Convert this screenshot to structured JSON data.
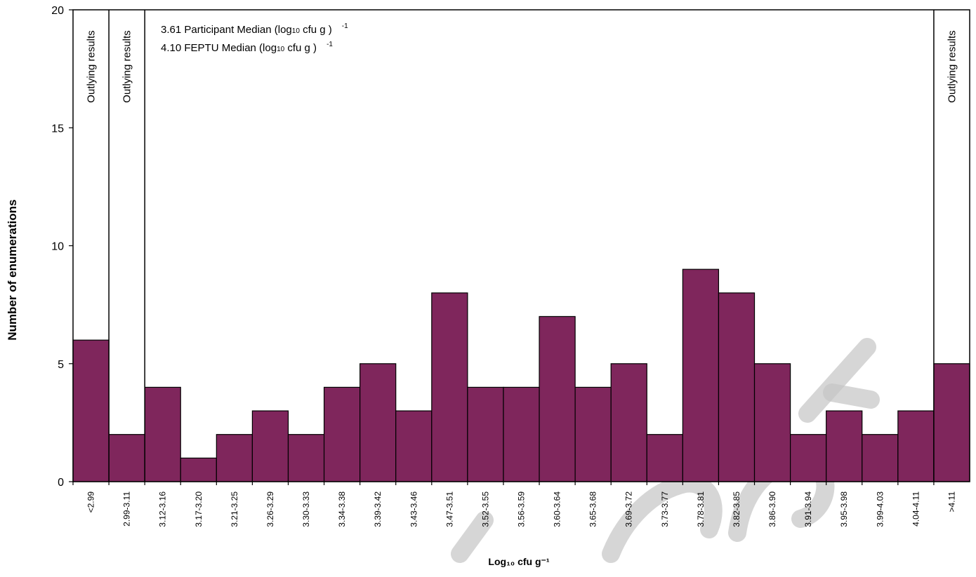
{
  "chart_data": {
    "type": "bar",
    "xlabel": "Log₁₀ cfu g⁻¹",
    "ylabel": "Number of enumerations",
    "ylim": [
      0,
      20
    ],
    "yticks": [
      0,
      5,
      10,
      15,
      20
    ],
    "categories": [
      "<2.99",
      "2.99-3.11",
      "3.12-3.16",
      "3.17-3.20",
      "3.21-3.25",
      "3.26-3.29",
      "3.30-3.33",
      "3.34-3.38",
      "3.39-3.42",
      "3.43-3.46",
      "3.47-3.51",
      "3.52-3.55",
      "3.56-3.59",
      "3.60-3.64",
      "3.65-3.68",
      "3.69-3.72",
      "3.73-3.77",
      "3.78-3.81",
      "3.82-3.85",
      "3.86-3.90",
      "3.91-3.94",
      "3.95-3.98",
      "3.99-4.03",
      "4.04-4.11",
      ">4.11"
    ],
    "values": [
      6,
      2,
      4,
      1,
      2,
      3,
      2,
      4,
      5,
      3,
      8,
      4,
      4,
      7,
      4,
      5,
      2,
      9,
      8,
      5,
      2,
      3,
      2,
      3,
      5
    ],
    "outlier_label": "Outlying results",
    "outlier_columns": [
      0,
      1,
      24
    ],
    "annotations": [
      {
        "value": "3.61",
        "label": "Participant Median (log",
        "sub": "10",
        "unit": " cfu g  )",
        "sup": "-1"
      },
      {
        "value": "4.10",
        "label": "FEPTU Median (log",
        "sub": "10",
        "unit": " cfu g  )",
        "sup": "-1"
      }
    ],
    "grid": false,
    "legend": "none"
  },
  "watermark": "Report",
  "colors": {
    "bar": "#7f265c"
  }
}
